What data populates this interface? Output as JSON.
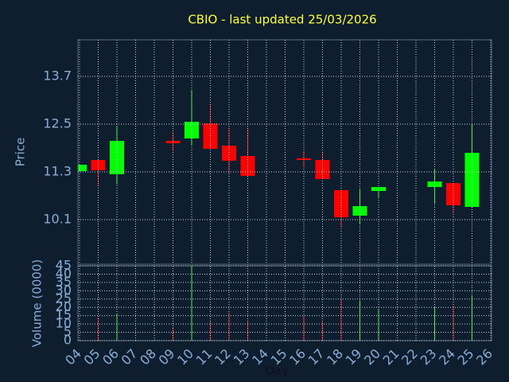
{
  "chart_data": {
    "type": "candlestick",
    "title": "CBIO - last updated 25/03/2026",
    "y_label": "Price",
    "volume_label": "Volume (0000)",
    "x_label": "Day",
    "categories": [
      "04",
      "05",
      "06",
      "07",
      "08",
      "09",
      "10",
      "11",
      "12",
      "13",
      "14",
      "15",
      "16",
      "17",
      "18",
      "19",
      "20",
      "21",
      "22",
      "23",
      "24",
      "25",
      "26"
    ],
    "open": [
      11.32,
      11.6,
      11.24,
      null,
      null,
      12.08,
      12.14,
      12.52,
      11.96,
      11.7,
      null,
      null,
      11.64,
      11.6,
      10.84,
      10.2,
      10.82,
      null,
      null,
      10.92,
      11.02,
      10.42,
      null
    ],
    "high": [
      11.48,
      11.6,
      12.46,
      null,
      null,
      12.3,
      13.34,
      13.02,
      12.42,
      12.42,
      null,
      null,
      11.82,
      11.78,
      10.84,
      10.86,
      10.92,
      null,
      null,
      11.36,
      11.02,
      12.52,
      null
    ],
    "low": [
      11.32,
      10.94,
      10.98,
      null,
      null,
      11.82,
      11.98,
      11.88,
      11.26,
      11.2,
      null,
      null,
      11.42,
      11.12,
      9.9,
      9.98,
      10.66,
      null,
      null,
      10.5,
      10.26,
      10.42,
      null
    ],
    "close": [
      11.48,
      11.34,
      12.08,
      null,
      null,
      12.02,
      12.56,
      11.88,
      11.58,
      11.2,
      null,
      null,
      11.6,
      11.12,
      10.16,
      10.44,
      10.92,
      null,
      null,
      11.06,
      10.46,
      11.78,
      null
    ],
    "volume": [
      null,
      14,
      16,
      null,
      null,
      8,
      45,
      12,
      17,
      12,
      null,
      null,
      15,
      11,
      25,
      24,
      19,
      null,
      null,
      20,
      21,
      27,
      null
    ],
    "ylim": [
      8.98,
      14.62
    ],
    "yticks": [
      10.1,
      11.3,
      12.5,
      13.7
    ],
    "volume_ylim": [
      0,
      45
    ],
    "volume_yticks": [
      0,
      5,
      10,
      15,
      20,
      25,
      30,
      35,
      40,
      45
    ],
    "up_color": "#00ff00",
    "down_color": "#ff0000",
    "grid": true
  }
}
